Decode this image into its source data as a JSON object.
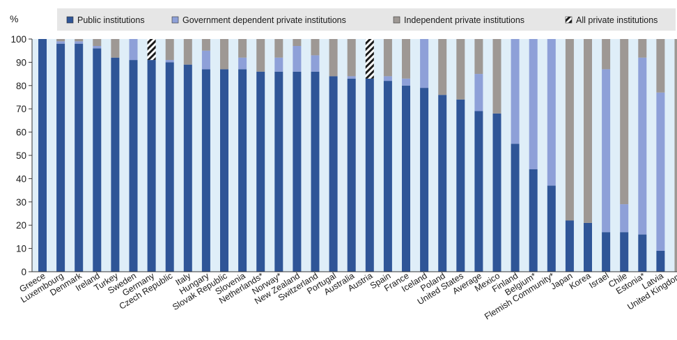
{
  "chart_data": {
    "type": "bar",
    "stacked": true,
    "ylabel": "%",
    "ylim": [
      0,
      100
    ],
    "yticks": [
      0,
      10,
      20,
      30,
      40,
      50,
      60,
      70,
      80,
      90,
      100
    ],
    "grid": false,
    "legend_position": "top",
    "legend": [
      {
        "key": "public",
        "label": "Public institutions",
        "color": "#2f5597",
        "swatch": "solid"
      },
      {
        "key": "gov_private",
        "label": "Government dependent private institutions",
        "color": "#8ea0d8",
        "swatch": "solid"
      },
      {
        "key": "indep_private",
        "label": "Independent private institutions",
        "color": "#9e9894",
        "swatch": "solid"
      },
      {
        "key": "all_private",
        "label": "All private institutions",
        "color": "#1a1a1a",
        "swatch": "hatched"
      }
    ],
    "categories": [
      "Greece",
      "Luxembourg",
      "Denmark",
      "Ireland",
      "Turkey",
      "Sweden",
      "Germany",
      "Czech Republic",
      "Italy",
      "Hungary",
      "Slovak Republic",
      "Slovenia",
      "Netherlands*",
      "Norway*",
      "New Zealand",
      "Switzerland",
      "Portugal",
      "Australia",
      "Austria",
      "Spain",
      "France",
      "Iceland",
      "Poland",
      "United States",
      "Average",
      "Mexico",
      "Finland",
      "Belgium*",
      "Flemish Community*",
      "Japan",
      "Korea",
      "Israel",
      "Chile",
      "Estonia*",
      "Latvia",
      "United Kingdom"
    ],
    "series": [
      {
        "key": "public",
        "name": "Public institutions",
        "values": [
          100,
          98,
          98,
          96,
          92,
          91,
          91,
          90,
          89,
          87,
          87,
          87,
          86,
          86,
          86,
          86,
          84,
          83,
          83,
          82,
          80,
          79,
          76,
          74,
          69,
          68,
          55,
          44,
          37,
          22,
          21,
          17,
          17,
          16,
          9,
          0
        ]
      },
      {
        "key": "gov_private",
        "name": "Government dependent private institutions",
        "values": [
          0,
          1,
          1,
          1,
          0,
          9,
          0,
          1,
          0,
          8,
          0,
          5,
          0,
          6,
          11,
          7,
          0,
          1,
          0,
          2,
          3,
          21,
          0,
          0,
          16,
          0,
          45,
          56,
          63,
          0,
          0,
          70,
          12,
          76,
          68,
          0
        ]
      },
      {
        "key": "indep_private",
        "name": "Independent private institutions",
        "values": [
          0,
          1,
          1,
          3,
          8,
          0,
          0,
          9,
          11,
          5,
          13,
          8,
          14,
          8,
          3,
          7,
          16,
          16,
          0,
          16,
          17,
          0,
          24,
          26,
          15,
          32,
          0,
          0,
          0,
          78,
          79,
          13,
          71,
          8,
          23,
          100
        ]
      },
      {
        "key": "all_private",
        "name": "All private institutions",
        "values": [
          0,
          0,
          0,
          0,
          0,
          0,
          9,
          0,
          0,
          0,
          0,
          0,
          0,
          0,
          0,
          0,
          0,
          0,
          17,
          0,
          0,
          0,
          0,
          0,
          0,
          0,
          0,
          0,
          0,
          0,
          0,
          0,
          0,
          0,
          0,
          0
        ]
      }
    ]
  }
}
